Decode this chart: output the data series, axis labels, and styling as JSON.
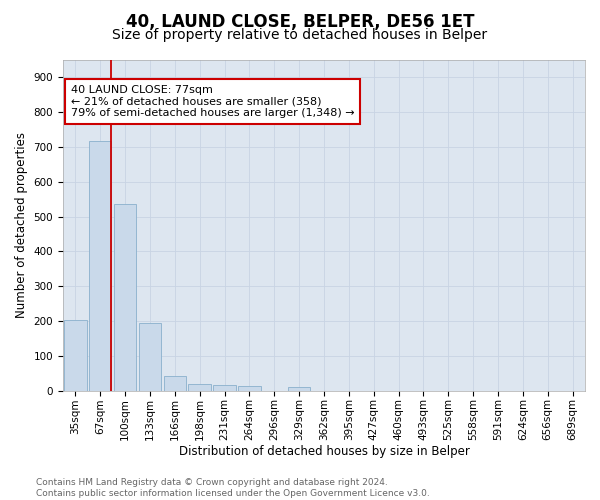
{
  "title1": "40, LAUND CLOSE, BELPER, DE56 1ET",
  "title2": "Size of property relative to detached houses in Belper",
  "xlabel": "Distribution of detached houses by size in Belper",
  "ylabel": "Number of detached properties",
  "categories": [
    "35sqm",
    "67sqm",
    "100sqm",
    "133sqm",
    "166sqm",
    "198sqm",
    "231sqm",
    "264sqm",
    "296sqm",
    "329sqm",
    "362sqm",
    "395sqm",
    "427sqm",
    "460sqm",
    "493sqm",
    "525sqm",
    "558sqm",
    "591sqm",
    "624sqm",
    "656sqm",
    "689sqm"
  ],
  "values": [
    203,
    716,
    535,
    195,
    43,
    20,
    15,
    12,
    0,
    10,
    0,
    0,
    0,
    0,
    0,
    0,
    0,
    0,
    0,
    0,
    0
  ],
  "bar_color": "#c9d9ea",
  "bar_edge_color": "#8ab0cc",
  "vline_x_index": 1,
  "vline_color": "#cc0000",
  "annotation_text": "40 LAUND CLOSE: 77sqm\n← 21% of detached houses are smaller (358)\n79% of semi-detached houses are larger (1,348) →",
  "annotation_box_color": "#ffffff",
  "annotation_border_color": "#cc0000",
  "ylim": [
    0,
    950
  ],
  "yticks": [
    0,
    100,
    200,
    300,
    400,
    500,
    600,
    700,
    800,
    900
  ],
  "grid_color": "#c8d4e4",
  "background_color": "#dde6f0",
  "footer_text": "Contains HM Land Registry data © Crown copyright and database right 2024.\nContains public sector information licensed under the Open Government Licence v3.0.",
  "title1_fontsize": 12,
  "title2_fontsize": 10,
  "xlabel_fontsize": 8.5,
  "ylabel_fontsize": 8.5,
  "tick_fontsize": 7.5,
  "annotation_fontsize": 8,
  "footer_fontsize": 6.5
}
